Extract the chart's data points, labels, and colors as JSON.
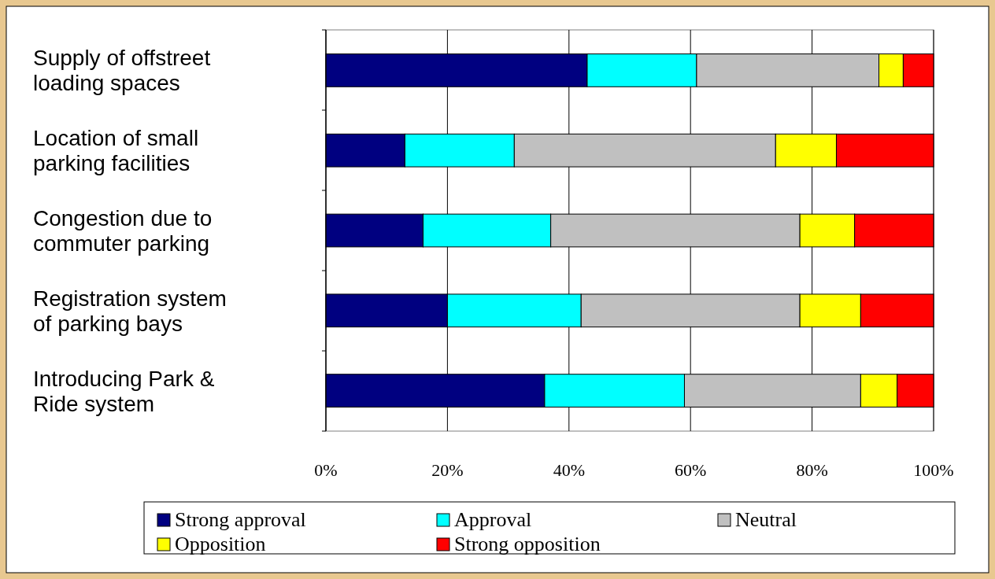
{
  "chart_data": {
    "type": "bar",
    "orientation": "horizontal",
    "stacked": true,
    "categories": [
      "Supply of offstreet loading spaces",
      "Location of small parking facilities",
      "Congestion due to commuter parking",
      "Registration system of parking bays",
      "Introducing Park & Ride system"
    ],
    "series": [
      {
        "name": "Strong approval",
        "color": "#000080",
        "values": [
          43,
          13,
          16,
          20,
          36
        ]
      },
      {
        "name": "Approval",
        "color": "#00ffff",
        "values": [
          18,
          18,
          21,
          22,
          23
        ]
      },
      {
        "name": "Neutral",
        "color": "#c0c0c0",
        "values": [
          30,
          43,
          41,
          36,
          29
        ]
      },
      {
        "name": "Opposition",
        "color": "#ffff00",
        "values": [
          4,
          10,
          9,
          10,
          6
        ]
      },
      {
        "name": "Strong opposition",
        "color": "#ff0000",
        "values": [
          5,
          16,
          13,
          12,
          6
        ]
      }
    ],
    "xlim": [
      0,
      100
    ],
    "xticks": [
      {
        "value": 0,
        "label": "0%"
      },
      {
        "value": 20,
        "label": "20%"
      },
      {
        "value": 40,
        "label": "40%"
      },
      {
        "value": 60,
        "label": "60%"
      },
      {
        "value": 80,
        "label": "80%"
      },
      {
        "value": 100,
        "label": "100%"
      }
    ],
    "grid": "x",
    "legend": "bottom"
  }
}
